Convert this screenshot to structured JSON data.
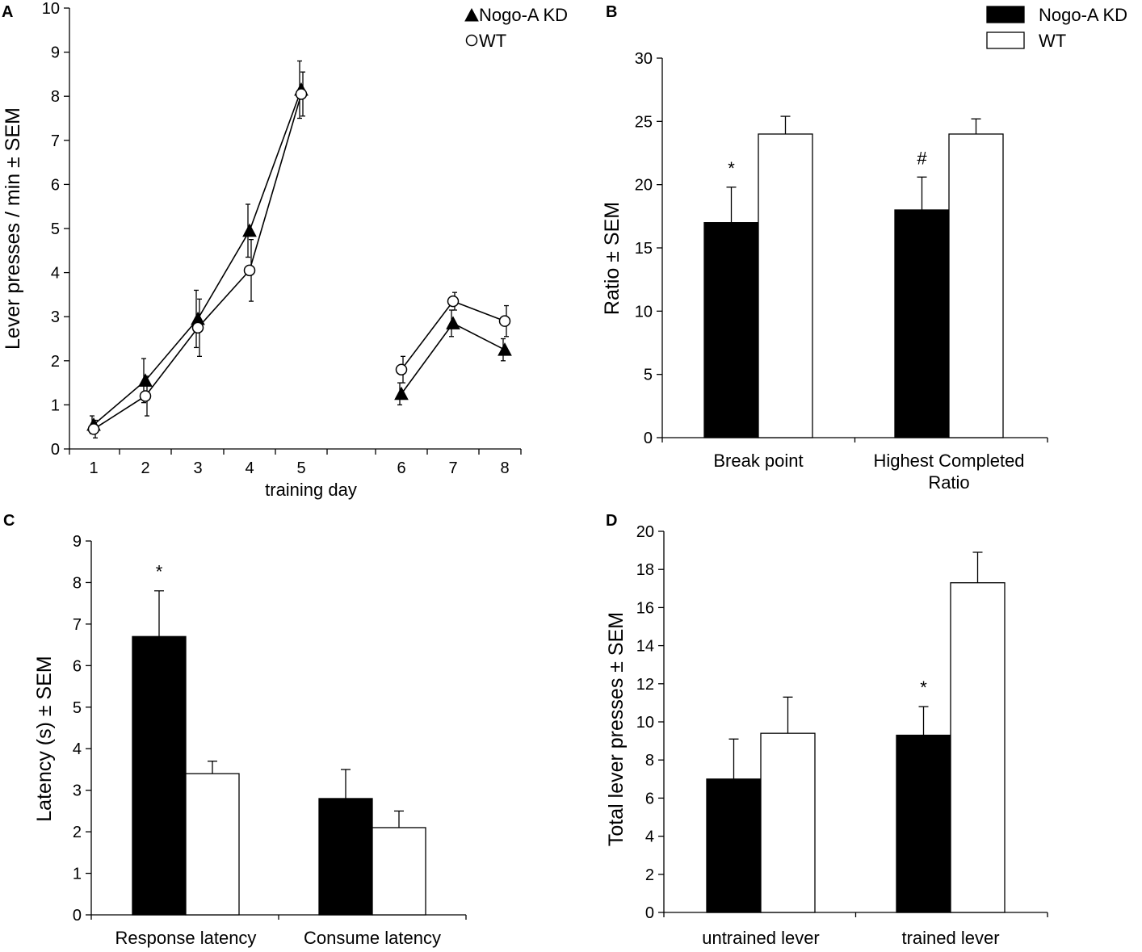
{
  "figure": {
    "panels": [
      "A",
      "B",
      "C",
      "D"
    ]
  },
  "colors": {
    "nogo": "#000000",
    "wt": "#ffffff",
    "stroke": "#000000"
  },
  "chart_data": [
    {
      "id": "A",
      "type": "line",
      "title": "",
      "xlabel": "training day",
      "ylabel": "Lever presses / min ± SEM",
      "ylim": [
        0,
        10
      ],
      "yticks": [
        0,
        1,
        2,
        3,
        4,
        5,
        6,
        7,
        8,
        9,
        10
      ],
      "x": [
        1,
        2,
        3,
        4,
        5,
        6,
        7,
        8
      ],
      "legend_position": "top-right",
      "series": [
        {
          "name": "Nogo-A KD",
          "marker": "triangle-filled",
          "segments": [
            [
              0,
              1,
              2,
              3,
              4
            ],
            [
              5,
              6,
              7
            ]
          ],
          "values": [
            0.55,
            1.55,
            2.95,
            4.95,
            8.15,
            1.25,
            2.85,
            2.25
          ],
          "errors": [
            0.2,
            0.5,
            0.65,
            0.6,
            0.65,
            0.25,
            0.3,
            0.25
          ]
        },
        {
          "name": "WT",
          "marker": "circle-open",
          "segments": [
            [
              0,
              1,
              2,
              3,
              4
            ],
            [
              5,
              6,
              7
            ]
          ],
          "values": [
            0.45,
            1.2,
            2.75,
            4.05,
            8.05,
            1.8,
            3.35,
            2.9
          ],
          "errors": [
            0.2,
            0.45,
            0.65,
            0.7,
            0.5,
            0.3,
            0.2,
            0.35
          ]
        }
      ]
    },
    {
      "id": "B",
      "type": "bar",
      "title": "",
      "xlabel": "",
      "ylabel": "Ratio ± SEM",
      "ylim": [
        0,
        30
      ],
      "yticks": [
        0,
        5,
        10,
        15,
        20,
        25,
        30
      ],
      "categories": [
        "Break point",
        "Highest Completed Ratio"
      ],
      "category_lines": [
        [
          "Break point"
        ],
        [
          "Highest Completed",
          "Ratio"
        ]
      ],
      "legend_position": "top-right",
      "series": [
        {
          "name": "Nogo-A KD",
          "values": [
            17,
            18
          ],
          "errors": [
            2.8,
            2.6
          ]
        },
        {
          "name": "WT",
          "values": [
            24,
            24
          ],
          "errors": [
            1.4,
            1.2
          ]
        }
      ],
      "annotations": [
        {
          "text": "*",
          "series": 0,
          "category": 0
        },
        {
          "text": "#",
          "series": 0,
          "category": 1
        }
      ]
    },
    {
      "id": "C",
      "type": "bar",
      "title": "",
      "xlabel": "",
      "ylabel": "Latency (s) ± SEM",
      "ylim": [
        0,
        9
      ],
      "yticks": [
        0,
        1,
        2,
        3,
        4,
        5,
        6,
        7,
        8,
        9
      ],
      "categories": [
        "Response latency",
        "Consume latency"
      ],
      "category_lines": [
        [
          "Response latency"
        ],
        [
          "Consume latency"
        ]
      ],
      "series": [
        {
          "name": "Nogo-A KD",
          "values": [
            6.7,
            2.8
          ],
          "errors": [
            1.1,
            0.7
          ]
        },
        {
          "name": "WT",
          "values": [
            3.4,
            2.1
          ],
          "errors": [
            0.3,
            0.4
          ]
        }
      ],
      "annotations": [
        {
          "text": "*",
          "series": 0,
          "category": 0
        }
      ]
    },
    {
      "id": "D",
      "type": "bar",
      "title": "",
      "xlabel": "",
      "ylabel": "Total lever presses ± SEM",
      "ylim": [
        0,
        20
      ],
      "yticks": [
        0,
        2,
        4,
        6,
        8,
        10,
        12,
        14,
        16,
        18,
        20
      ],
      "categories": [
        "untrained lever",
        "trained lever"
      ],
      "category_lines": [
        [
          "untrained lever"
        ],
        [
          "trained lever"
        ]
      ],
      "series": [
        {
          "name": "Nogo-A KD",
          "values": [
            7.0,
            9.3
          ],
          "errors": [
            2.1,
            1.5
          ]
        },
        {
          "name": "WT",
          "values": [
            9.4,
            17.3
          ],
          "errors": [
            1.9,
            1.6
          ]
        }
      ],
      "annotations": [
        {
          "text": "*",
          "series": 0,
          "category": 1
        }
      ]
    }
  ]
}
